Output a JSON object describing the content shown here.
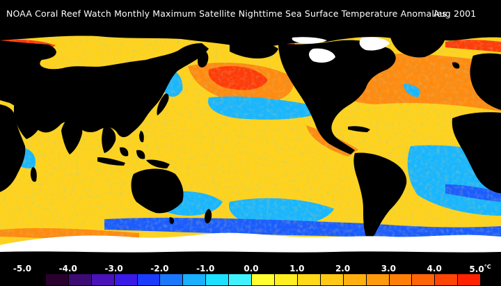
{
  "title": {
    "text": "NOAA Coral Reef Watch Monthly Maximum Satellite Nighttime Sea Surface Temperature Anomalies",
    "date": "Aug 2001"
  },
  "legend": {
    "unit": "°C",
    "ticks": [
      "-5.0",
      "-4.0",
      "-3.0",
      "-2.0",
      "-1.0",
      "0.0",
      "1.0",
      "2.0",
      "3.0",
      "4.0",
      "5.0"
    ],
    "colors": [
      "#000000",
      "#2a002e",
      "#3d0a74",
      "#4a12b8",
      "#3a1ae8",
      "#1a3cff",
      "#1a78ff",
      "#18b0ff",
      "#1ce0ff",
      "#40f2ff",
      "#ffff30",
      "#ffee20",
      "#ffd818",
      "#ffc814",
      "#ffb010",
      "#ff9a0c",
      "#ff8008",
      "#ff6406",
      "#ff4404",
      "#ff2200"
    ]
  },
  "map_colors": {
    "land": "#000000",
    "ice": "#ffffff",
    "ocean_base": "#ffd31c",
    "warm": "#ff8a10",
    "hot": "#ff3a08",
    "cool": "#18b6ff",
    "cold": "#1a5cff"
  }
}
